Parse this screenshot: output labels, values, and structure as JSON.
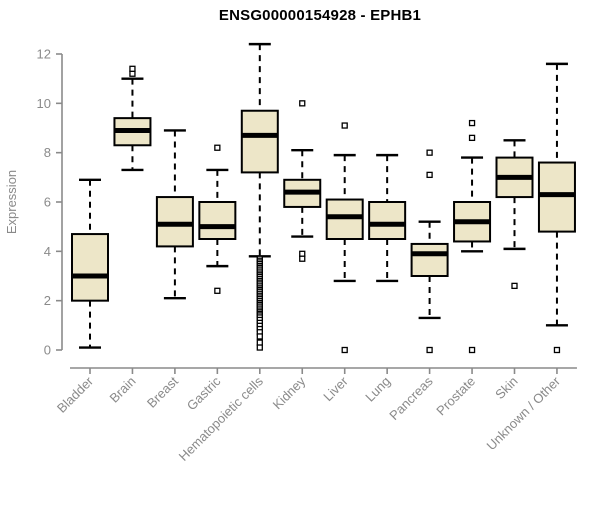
{
  "chart_data": {
    "type": "boxplot",
    "title": "ENSG00000154928 - EPHB1",
    "ylabel": "Expression",
    "xlabel": "",
    "ylim": [
      0,
      12
    ],
    "yticks": [
      0,
      2,
      4,
      6,
      8,
      10,
      12
    ],
    "grid": false,
    "legend": "none",
    "categories": [
      "Bladder",
      "Brain",
      "Breast",
      "Gastric",
      "Hematopoietic cells",
      "Kidney",
      "Liver",
      "Lung",
      "Pancreas",
      "Prostate",
      "Skin",
      "Unknown / Other"
    ],
    "series": [
      {
        "name": "Bladder",
        "low": 0.1,
        "q1": 2.0,
        "median": 3.0,
        "q3": 4.7,
        "high": 6.9,
        "outliers": []
      },
      {
        "name": "Brain",
        "low": 7.3,
        "q1": 8.3,
        "median": 8.9,
        "q3": 9.4,
        "high": 11.0,
        "outliers": [
          11.2,
          11.4
        ]
      },
      {
        "name": "Breast",
        "low": 2.1,
        "q1": 4.2,
        "median": 5.1,
        "q3": 6.2,
        "high": 8.9,
        "outliers": []
      },
      {
        "name": "Gastric",
        "low": 3.4,
        "q1": 4.5,
        "median": 5.0,
        "q3": 6.0,
        "high": 7.3,
        "outliers": [
          8.2,
          2.4
        ]
      },
      {
        "name": "Hematopoietic cells",
        "low": 3.8,
        "q1": 7.2,
        "median": 8.7,
        "q3": 9.7,
        "high": 12.4,
        "outliers": [
          3.7,
          3.62,
          3.55,
          3.48,
          3.4,
          3.33,
          3.26,
          3.18,
          3.1,
          3.03,
          2.96,
          2.88,
          2.8,
          2.73,
          2.66,
          2.58,
          2.5,
          2.43,
          2.36,
          2.28,
          2.2,
          2.13,
          2.06,
          1.98,
          1.9,
          1.83,
          1.76,
          1.68,
          1.6,
          1.53,
          1.46,
          1.4,
          1.32,
          1.22,
          1.1,
          0.98,
          0.85,
          0.72,
          0.55,
          0.3,
          0.1
        ]
      },
      {
        "name": "Kidney",
        "low": 4.6,
        "q1": 5.8,
        "median": 6.4,
        "q3": 6.9,
        "high": 8.1,
        "outliers": [
          10.0,
          3.9,
          3.7
        ]
      },
      {
        "name": "Liver",
        "low": 2.8,
        "q1": 4.5,
        "median": 5.4,
        "q3": 6.1,
        "high": 7.9,
        "outliers": [
          9.1,
          0.0
        ]
      },
      {
        "name": "Lung",
        "low": 2.8,
        "q1": 4.5,
        "median": 5.1,
        "q3": 6.0,
        "high": 7.9,
        "outliers": []
      },
      {
        "name": "Pancreas",
        "low": 1.3,
        "q1": 3.0,
        "median": 3.9,
        "q3": 4.3,
        "high": 5.2,
        "outliers": [
          8.0,
          7.1,
          0.0
        ]
      },
      {
        "name": "Prostate",
        "low": 4.0,
        "q1": 4.4,
        "median": 5.2,
        "q3": 6.0,
        "high": 7.8,
        "outliers": [
          9.2,
          8.6,
          0.0
        ]
      },
      {
        "name": "Skin",
        "low": 4.1,
        "q1": 6.2,
        "median": 7.0,
        "q3": 7.8,
        "high": 8.5,
        "outliers": [
          2.6
        ]
      },
      {
        "name": "Unknown / Other",
        "low": 1.0,
        "q1": 4.8,
        "median": 6.3,
        "q3": 7.6,
        "high": 11.6,
        "outliers": [
          0.0
        ]
      }
    ],
    "colors": {
      "box_fill": "#EDE6C8",
      "box_stroke": "#000000",
      "median": "#000000",
      "whisker": "#000000",
      "outlier_stroke": "#000000",
      "axis": "#8a8a8a",
      "tick_label": "#8a8a8a",
      "title": "#000000",
      "background": "#ffffff"
    }
  }
}
